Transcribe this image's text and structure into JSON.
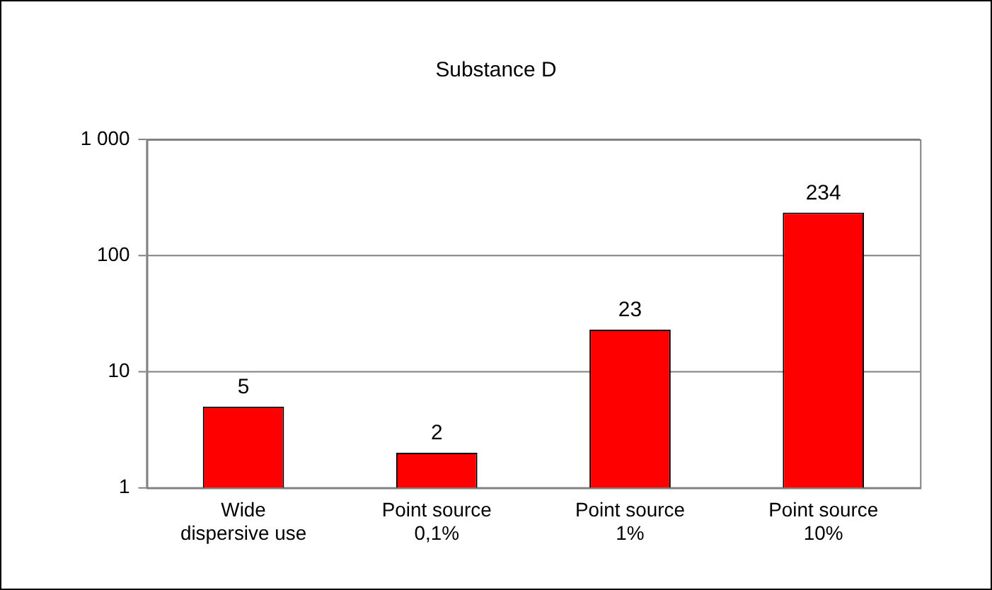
{
  "chart_data": {
    "type": "bar",
    "title": "Substance D",
    "categories": [
      "Wide dispersive use",
      "Point source 0,1%",
      "Point source 1%",
      "Point source 10%"
    ],
    "values": [
      5,
      2,
      23,
      234
    ],
    "color": "#ff0000",
    "log": true,
    "ylim": [
      1,
      1000
    ],
    "yticks": [
      1,
      10,
      100,
      {
        "value": 1000,
        "label": "1 000"
      }
    ],
    "grid": "y",
    "data_labels": true,
    "legend": false
  }
}
